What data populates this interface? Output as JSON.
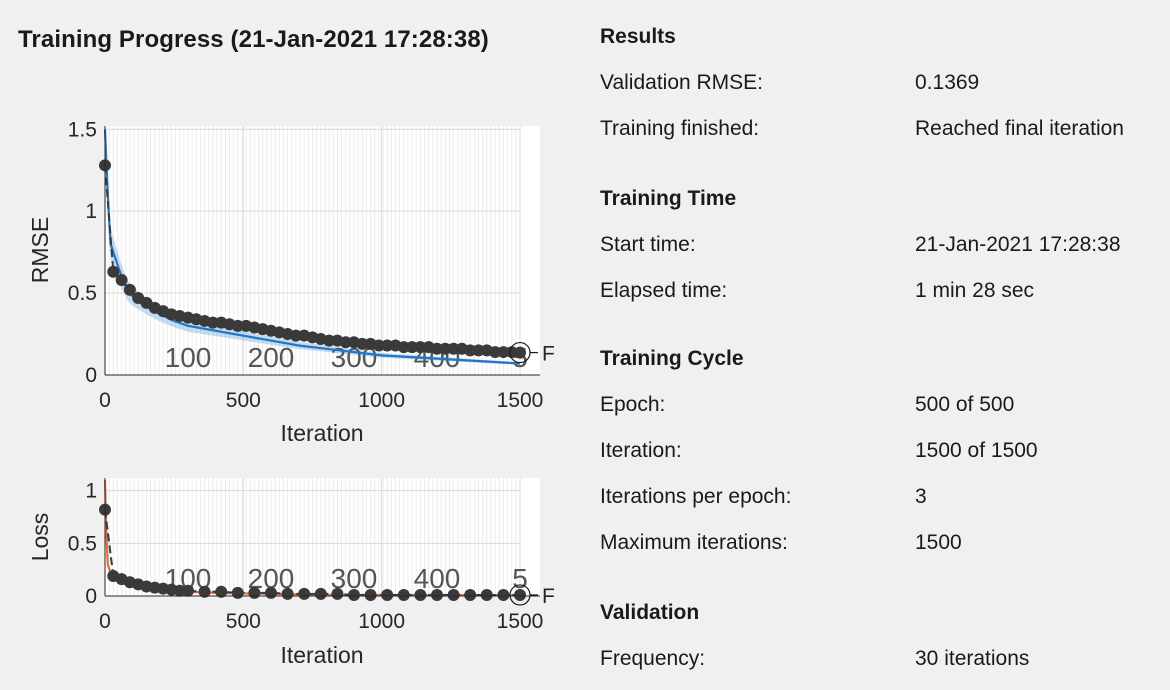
{
  "title": "Training Progress (21-Jan-2021 17:28:38)",
  "rmse_plot": {
    "ylabel": "RMSE",
    "xlabel": "Iteration",
    "yticks": [
      "0",
      "0.5",
      "1",
      "1.5"
    ],
    "xticks": [
      "0",
      "500",
      "1000",
      "1500"
    ],
    "epoch_markers": [
      "100",
      "200",
      "300",
      "400",
      "5"
    ],
    "final_marker": "F"
  },
  "loss_plot": {
    "ylabel": "Loss",
    "xlabel": "Iteration",
    "yticks": [
      "0",
      "0.5",
      "1"
    ],
    "xticks": [
      "0",
      "500",
      "1000",
      "1500"
    ],
    "epoch_markers": [
      "100",
      "200",
      "300",
      "400",
      "5"
    ],
    "final_marker": "F"
  },
  "chart_data": [
    {
      "type": "line",
      "ylabel": "RMSE",
      "xlabel": "Iteration",
      "xlim": [
        0,
        1500
      ],
      "ylim": [
        0,
        1.5
      ],
      "grid": true,
      "series": [
        {
          "x": [
            0,
            30,
            60,
            90,
            120,
            150,
            180,
            210,
            240,
            270,
            300,
            330,
            360,
            390,
            420,
            450,
            480,
            510,
            540,
            570,
            600,
            630,
            660,
            690,
            720,
            750,
            780,
            810,
            840,
            870,
            900,
            930,
            960,
            990,
            1020,
            1050,
            1080,
            1110,
            1140,
            1170,
            1200,
            1230,
            1260,
            1290,
            1320,
            1350,
            1380,
            1410,
            1440,
            1470,
            1500
          ],
          "y": [
            1.28,
            0.63,
            0.58,
            0.52,
            0.47,
            0.44,
            0.41,
            0.39,
            0.37,
            0.36,
            0.35,
            0.34,
            0.33,
            0.32,
            0.32,
            0.31,
            0.3,
            0.3,
            0.29,
            0.28,
            0.27,
            0.26,
            0.25,
            0.24,
            0.24,
            0.23,
            0.22,
            0.21,
            0.21,
            0.2,
            0.2,
            0.19,
            0.19,
            0.18,
            0.18,
            0.18,
            0.17,
            0.17,
            0.17,
            0.17,
            0.16,
            0.16,
            0.16,
            0.16,
            0.15,
            0.15,
            0.15,
            0.14,
            0.14,
            0.14,
            0.1369
          ]
        },
        {
          "x": [
            0,
            10,
            20,
            40,
            60,
            80,
            100,
            150,
            200,
            250,
            300,
            400,
            500,
            600,
            700,
            800,
            900,
            1000,
            1100,
            1200,
            1300,
            1400,
            1500
          ],
          "y": [
            1.5,
            1.1,
            0.8,
            0.7,
            0.6,
            0.52,
            0.48,
            0.42,
            0.37,
            0.33,
            0.3,
            0.27,
            0.24,
            0.21,
            0.18,
            0.16,
            0.14,
            0.12,
            0.11,
            0.1,
            0.09,
            0.08,
            0.07
          ]
        }
      ],
      "final_validation": 0.1369
    },
    {
      "type": "line",
      "ylabel": "Loss",
      "xlabel": "Iteration",
      "xlim": [
        0,
        1500
      ],
      "ylim": [
        0,
        1.1
      ],
      "grid": true,
      "series": [
        {
          "x": [
            0,
            30,
            60,
            90,
            120,
            150,
            180,
            210,
            240,
            270,
            300,
            360,
            420,
            480,
            540,
            600,
            660,
            720,
            780,
            840,
            900,
            960,
            1020,
            1080,
            1140,
            1200,
            1260,
            1320,
            1380,
            1440,
            1500
          ],
          "y": [
            0.82,
            0.19,
            0.16,
            0.13,
            0.11,
            0.09,
            0.08,
            0.07,
            0.06,
            0.05,
            0.05,
            0.04,
            0.04,
            0.03,
            0.03,
            0.03,
            0.02,
            0.02,
            0.02,
            0.02,
            0.01,
            0.01,
            0.01,
            0.01,
            0.01,
            0.01,
            0.01,
            0.01,
            0.01,
            0.01,
            0.01
          ]
        },
        {
          "x": [
            0,
            5,
            10,
            20,
            40,
            60,
            80,
            100,
            150,
            200,
            300,
            400,
            600,
            800,
            1000,
            1200,
            1500
          ],
          "y": [
            1.1,
            0.6,
            0.3,
            0.22,
            0.18,
            0.15,
            0.12,
            0.1,
            0.08,
            0.06,
            0.04,
            0.03,
            0.02,
            0.01,
            0.01,
            0.01,
            0.005
          ]
        }
      ]
    }
  ],
  "results": {
    "title": "Results",
    "rows": [
      {
        "label": "Validation RMSE:",
        "value": "0.1369"
      },
      {
        "label": "Training finished:",
        "value": "Reached final iteration"
      }
    ]
  },
  "training_time": {
    "title": "Training Time",
    "rows": [
      {
        "label": "Start time:",
        "value": "21-Jan-2021 17:28:38"
      },
      {
        "label": "Elapsed time:",
        "value": "1 min 28 sec"
      }
    ]
  },
  "training_cycle": {
    "title": "Training Cycle",
    "rows": [
      {
        "label": "Epoch:",
        "value": "500 of 500"
      },
      {
        "label": "Iteration:",
        "value": "1500 of 1500"
      },
      {
        "label": "Iterations per epoch:",
        "value": "3"
      },
      {
        "label": "Maximum iterations:",
        "value": "1500"
      }
    ]
  },
  "validation": {
    "title": "Validation",
    "rows": [
      {
        "label": "Frequency:",
        "value": "30 iterations"
      }
    ]
  },
  "colors": {
    "training_rmse": "#1f77c8",
    "training_loss": "#e0703a",
    "validation": "#3a3a3a"
  }
}
